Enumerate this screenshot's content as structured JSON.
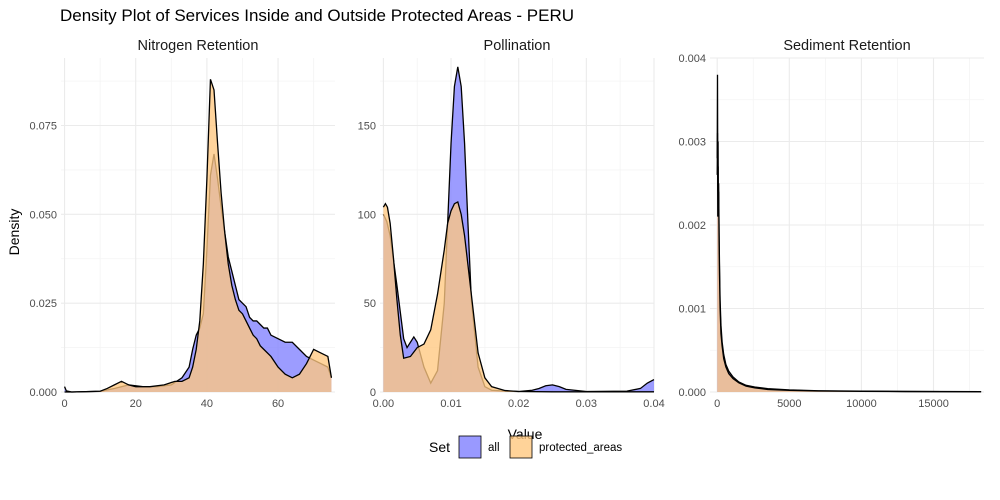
{
  "chart_data": {
    "type": "area",
    "title": "Density Plot of Services Inside and Outside Protected Areas - PERU",
    "xlabel": "Value",
    "ylabel": "Density",
    "legend": {
      "title": "Set",
      "position": "bottom",
      "entries": [
        {
          "name": "all",
          "color": "#8080ff"
        },
        {
          "name": "protected_areas",
          "color": "#ffc880"
        }
      ]
    },
    "colors": {
      "all": "#8080ff",
      "protected_areas": "#ffc880",
      "outline": "#000000"
    },
    "grid": true,
    "panels": [
      {
        "title": "Nitrogen Retention",
        "xlim": [
          -1,
          76
        ],
        "ylim": [
          0,
          0.094
        ],
        "xticks": [
          0,
          20,
          40,
          60
        ],
        "yticks": [
          0.0,
          0.025,
          0.05,
          0.075
        ],
        "ytick_labels": [
          "0.000",
          "0.025",
          "0.050",
          "0.075"
        ],
        "series": [
          {
            "name": "all",
            "x": [
              0,
              0.5,
              2,
              10,
              14,
              18,
              22,
              26,
              30,
              33,
              35,
              36,
              37,
              38,
              39,
              40,
              41,
              42,
              43,
              44,
              45,
              46,
              47,
              48,
              49,
              50,
              51,
              52,
              53,
              54,
              55,
              56,
              57,
              58,
              60,
              62,
              64,
              66,
              68,
              70,
              72,
              74,
              75
            ],
            "y": [
              0.0015,
              0.0003,
              0,
              0.0002,
              0.001,
              0.002,
              0.0015,
              0.0015,
              0.002,
              0.004,
              0.007,
              0.012,
              0.016,
              0.018,
              0.022,
              0.04,
              0.061,
              0.067,
              0.06,
              0.052,
              0.045,
              0.038,
              0.034,
              0.03,
              0.026,
              0.025,
              0.024,
              0.021,
              0.02,
              0.02,
              0.019,
              0.018,
              0.018,
              0.016,
              0.015,
              0.014,
              0.014,
              0.012,
              0.01,
              0.009,
              0.008,
              0.007,
              0.004
            ]
          },
          {
            "name": "protected_areas",
            "x": [
              0,
              2,
              10,
              12,
              14,
              16,
              18,
              20,
              24,
              28,
              31,
              33,
              35,
              36,
              37,
              38,
              39,
              40,
              41,
              42,
              43,
              44,
              45,
              46,
              47,
              48,
              49,
              50,
              51,
              52,
              53,
              54,
              55,
              56,
              58,
              60,
              62,
              64,
              66,
              68,
              70,
              72,
              74,
              75
            ],
            "y": [
              0,
              0,
              0.0002,
              0.001,
              0.002,
              0.003,
              0.002,
              0.0015,
              0.0015,
              0.002,
              0.003,
              0.003,
              0.004,
              0.007,
              0.012,
              0.02,
              0.036,
              0.06,
              0.088,
              0.085,
              0.07,
              0.056,
              0.045,
              0.036,
              0.03,
              0.026,
              0.023,
              0.022,
              0.02,
              0.018,
              0.016,
              0.015,
              0.013,
              0.012,
              0.01,
              0.007,
              0.005,
              0.004,
              0.005,
              0.008,
              0.012,
              0.011,
              0.01,
              0.004
            ]
          }
        ]
      },
      {
        "title": "Pollination",
        "xlim": [
          -0.0005,
          0.04
        ],
        "ylim": [
          0,
          188
        ],
        "xticks": [
          0.0,
          0.01,
          0.02,
          0.03,
          0.04
        ],
        "xtick_labels": [
          "0.00",
          "0.01",
          "0.02",
          "0.03",
          "0.04"
        ],
        "yticks": [
          0,
          50,
          100,
          150
        ],
        "ytick_labels": [
          "0",
          "50",
          "100",
          "150"
        ],
        "series": [
          {
            "name": "all",
            "x": [
              0,
              0.0005,
              0.001,
              0.002,
              0.003,
              0.0035,
              0.004,
              0.0045,
              0.005,
              0.006,
              0.007,
              0.008,
              0.009,
              0.0095,
              0.01,
              0.0105,
              0.011,
              0.0115,
              0.012,
              0.0125,
              0.013,
              0.014,
              0.015,
              0.016,
              0.018,
              0.02,
              0.022,
              0.023,
              0.024,
              0.025,
              0.026,
              0.027,
              0.03,
              0.036,
              0.038,
              0.039,
              0.04
            ],
            "y": [
              100,
              96,
              88,
              60,
              30,
              25,
              28,
              31,
              28,
              14,
              5,
              12,
              50,
              95,
              140,
              172,
              183,
              172,
              140,
              95,
              52,
              14,
              3,
              1,
              0.5,
              0.3,
              1,
              2,
              3.5,
              4,
              3,
              1.5,
              0.3,
              0.5,
              2,
              5,
              7
            ]
          },
          {
            "name": "protected_areas",
            "x": [
              0,
              0.0003,
              0.0006,
              0.001,
              0.0015,
              0.002,
              0.0025,
              0.003,
              0.004,
              0.005,
              0.006,
              0.007,
              0.008,
              0.009,
              0.0095,
              0.01,
              0.0105,
              0.011,
              0.0115,
              0.012,
              0.013,
              0.014,
              0.015,
              0.016,
              0.018,
              0.02,
              0.025,
              0.03,
              0.035,
              0.04
            ],
            "y": [
              104,
              106,
              104,
              95,
              75,
              52,
              32,
              19,
              20,
              25,
              27,
              35,
              55,
              80,
              95,
              102,
              106,
              107,
              100,
              88,
              55,
              22,
              8,
              3,
              0.8,
              0.3,
              0.1,
              0.1,
              0.1,
              0.1
            ]
          }
        ]
      },
      {
        "title": "Sediment Retention",
        "xlim": [
          -500,
          18500
        ],
        "ylim": [
          0,
          0.004
        ],
        "xticks": [
          0,
          5000,
          10000,
          15000
        ],
        "yticks": [
          0.0,
          0.001,
          0.002,
          0.003,
          0.004
        ],
        "ytick_labels": [
          "0.000",
          "0.001",
          "0.002",
          "0.003",
          "0.004"
        ],
        "series": [
          {
            "name": "all",
            "x": [
              0,
              20,
              40,
              60,
              80,
              100,
              130,
              160,
              200,
              260,
              340,
              450,
              600,
              800,
              1100,
              1500,
              2000,
              2600,
              3500,
              5000,
              7000,
              10000,
              13000,
              18300
            ],
            "y": [
              0.0028,
              0.0038,
              0.0024,
              0.003,
              0.0022,
              0.0025,
              0.0019,
              0.0015,
              0.0011,
              0.0008,
              0.0006,
              0.00045,
              0.00033,
              0.00025,
              0.00018,
              0.00012,
              8e-05,
              6e-05,
              4e-05,
              2.5e-05,
              1.5e-05,
              1e-05,
              7e-06,
              4e-06
            ]
          },
          {
            "name": "protected_areas",
            "x": [
              0,
              20,
              40,
              60,
              80,
              100,
              130,
              160,
              200,
              260,
              340,
              450,
              600,
              800,
              1100,
              1500,
              2000,
              2600,
              3500,
              5000,
              7000,
              10000,
              13000,
              18300
            ],
            "y": [
              0.0026,
              0.0031,
              0.0021,
              0.0027,
              0.0021,
              0.0024,
              0.0018,
              0.0014,
              0.001,
              0.0007,
              0.00055,
              0.0004,
              0.0003,
              0.00022,
              0.00016,
              0.00011,
              7e-05,
              5e-05,
              3e-05,
              2e-05,
              1.2e-05,
              8e-06,
              5e-06,
              3e-06
            ]
          }
        ]
      }
    ]
  }
}
